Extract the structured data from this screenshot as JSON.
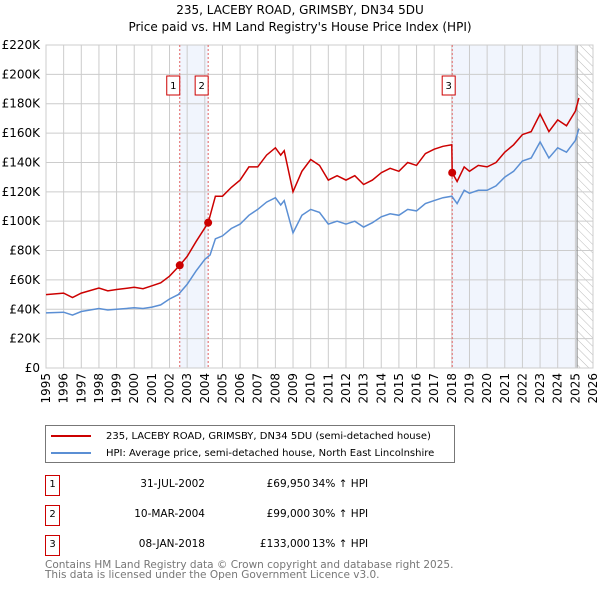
{
  "title_line1": "235, LACEBY ROAD, GRIMSBY, DN34 5DU",
  "title_line2": "Price paid vs. HM Land Registry's House Price Index (HPI)",
  "chart_data": {
    "type": "line",
    "title": "235, LACEBY ROAD, GRIMSBY, DN34 5DU — Price paid vs. HM Land Registry's House Price Index (HPI)",
    "xlim": [
      1995,
      2026
    ],
    "ylim": [
      0,
      220000
    ],
    "yticks": [
      0,
      20000,
      40000,
      60000,
      80000,
      100000,
      120000,
      140000,
      160000,
      180000,
      200000,
      220000
    ],
    "ytick_labels": [
      "£0",
      "£20K",
      "£40K",
      "£60K",
      "£80K",
      "£100K",
      "£120K",
      "£140K",
      "£160K",
      "£180K",
      "£200K",
      "£220K"
    ],
    "xticks": [
      1995,
      1996,
      1997,
      1998,
      1999,
      2000,
      2001,
      2002,
      2003,
      2004,
      2005,
      2006,
      2007,
      2008,
      2009,
      2010,
      2011,
      2012,
      2013,
      2014,
      2015,
      2016,
      2017,
      2018,
      2019,
      2020,
      2021,
      2022,
      2023,
      2024,
      2025,
      2026
    ],
    "grid": true,
    "shaded_ranges": [
      [
        2002.58,
        2004.19
      ],
      [
        2018.02,
        2025.1
      ]
    ],
    "hatched_from": 2025.1,
    "series": [
      {
        "name": "235, LACEBY ROAD, GRIMSBY, DN34 5DU (semi-detached house)",
        "color": "#cc0000",
        "x": [
          1995,
          1996,
          1996.5,
          1997,
          1998,
          1998.5,
          1999,
          2000,
          2000.5,
          2001,
          2001.5,
          2002,
          2002.58,
          2003,
          2003.5,
          2004.19,
          2004.6,
          2005,
          2005.5,
          2006,
          2006.5,
          2007,
          2007.5,
          2008,
          2008.3,
          2008.5,
          2009,
          2009.5,
          2010,
          2010.5,
          2011,
          2011.5,
          2012,
          2012.5,
          2013,
          2013.5,
          2014,
          2014.5,
          2015,
          2015.5,
          2016,
          2016.5,
          2017,
          2017.5,
          2018.0,
          2018.02,
          2018.3,
          2018.7,
          2019,
          2019.5,
          2020,
          2020.5,
          2021,
          2021.5,
          2022,
          2022.5,
          2023,
          2023.5,
          2024,
          2024.5,
          2025,
          2025.2
        ],
        "y": [
          50000,
          51000,
          48000,
          51000,
          54500,
          52500,
          53500,
          55000,
          54000,
          56000,
          58000,
          62500,
          69950,
          76000,
          86000,
          99000,
          117000,
          117000,
          123000,
          128000,
          137000,
          137000,
          145000,
          150000,
          145000,
          148000,
          120000,
          134000,
          142000,
          138000,
          128000,
          131000,
          128000,
          131000,
          125000,
          128000,
          133000,
          136000,
          134000,
          140000,
          138000,
          146000,
          149000,
          151000,
          152000,
          133000,
          127000,
          137000,
          134000,
          138000,
          137000,
          140000,
          147000,
          152000,
          159000,
          161000,
          173000,
          161000,
          169000,
          165000,
          175000,
          184000
        ]
      },
      {
        "name": "HPI: Average price, semi-detached house, North East Lincolnshire",
        "color": "#5b8fd4",
        "x": [
          1995,
          1996,
          1996.5,
          1997,
          1998,
          1998.5,
          1999,
          2000,
          2000.5,
          2001,
          2001.5,
          2002,
          2002.5,
          2003,
          2003.5,
          2004,
          2004.3,
          2004.6,
          2005,
          2005.5,
          2006,
          2006.5,
          2007,
          2007.5,
          2008,
          2008.3,
          2008.5,
          2009,
          2009.5,
          2010,
          2010.5,
          2011,
          2011.5,
          2012,
          2012.5,
          2013,
          2013.5,
          2014,
          2014.5,
          2015,
          2015.5,
          2016,
          2016.5,
          2017,
          2017.5,
          2018,
          2018.3,
          2018.7,
          2019,
          2019.5,
          2020,
          2020.5,
          2021,
          2021.5,
          2022,
          2022.5,
          2023,
          2023.5,
          2024,
          2024.5,
          2025,
          2025.2
        ],
        "y": [
          37500,
          38000,
          36000,
          38500,
          40500,
          39500,
          40000,
          41000,
          40500,
          41500,
          43000,
          47000,
          50000,
          57000,
          66000,
          74000,
          77000,
          88000,
          90000,
          95000,
          98000,
          104000,
          108000,
          113000,
          116000,
          111000,
          114000,
          92000,
          104000,
          108000,
          106000,
          98000,
          100000,
          98000,
          100000,
          96000,
          99000,
          103000,
          105000,
          104000,
          108000,
          107000,
          112000,
          114000,
          116000,
          117000,
          112000,
          121000,
          119000,
          121000,
          121000,
          124000,
          130000,
          134000,
          141000,
          143000,
          154000,
          143000,
          150000,
          147000,
          155000,
          163000
        ]
      }
    ],
    "sales": [
      {
        "label": "1",
        "x": 2002.58,
        "y": 69950
      },
      {
        "label": "2",
        "x": 2004.19,
        "y": 99000
      },
      {
        "label": "3",
        "x": 2018.02,
        "y": 133000
      }
    ]
  },
  "legend": {
    "property": "235, LACEBY ROAD, GRIMSBY, DN34 5DU (semi-detached house)",
    "hpi": "HPI: Average price, semi-detached house, North East Lincolnshire"
  },
  "transactions": [
    {
      "num": "1",
      "date": "31-JUL-2002",
      "price": "£69,950",
      "hpi": "34% ↑ HPI"
    },
    {
      "num": "2",
      "date": "10-MAR-2004",
      "price": "£99,000",
      "hpi": "30% ↑ HPI"
    },
    {
      "num": "3",
      "date": "08-JAN-2018",
      "price": "£133,000",
      "hpi": "13% ↑ HPI"
    }
  ],
  "footer": {
    "line1": "Contains HM Land Registry data © Crown copyright and database right 2025.",
    "line2": "This data is licensed under the Open Government Licence v3.0."
  }
}
